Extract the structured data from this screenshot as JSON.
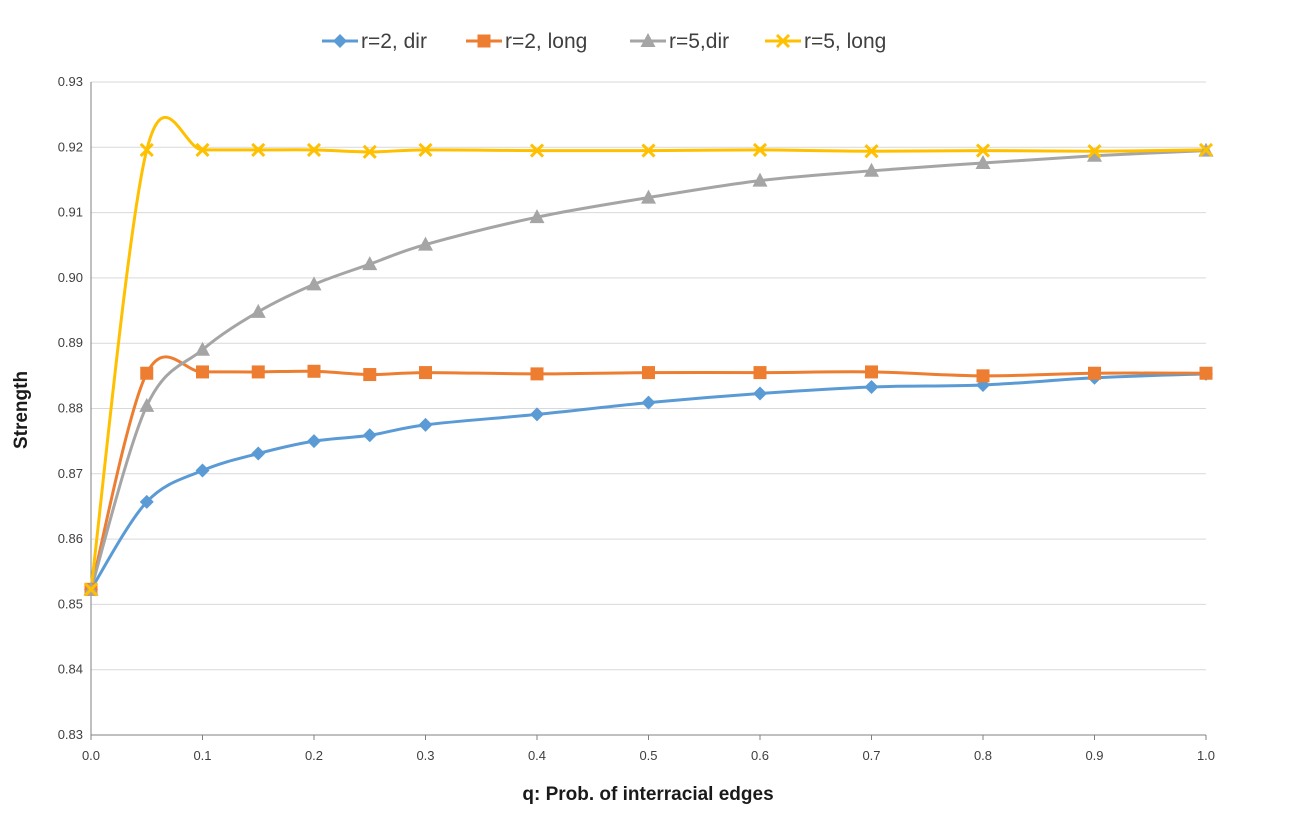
{
  "chart_data": {
    "type": "line",
    "title": "",
    "xlabel": "q: Prob. of interracial  edges",
    "ylabel": "Strength",
    "xlim": [
      0.0,
      1.0
    ],
    "ylim": [
      0.83,
      0.93
    ],
    "x_ticks": [
      "0.0",
      "0.1",
      "0.2",
      "0.3",
      "0.4",
      "0.5",
      "0.6",
      "0.7",
      "0.8",
      "0.9",
      "1.0"
    ],
    "y_ticks": [
      "0.93",
      "0.92",
      "0.91",
      "0.90",
      "0.89",
      "0.88",
      "0.87",
      "0.86",
      "0.85",
      "0.84",
      "0.83"
    ],
    "grid": "horizontal",
    "legend_position": "top",
    "x": [
      0.0,
      0.05,
      0.1,
      0.15,
      0.2,
      0.25,
      0.3,
      0.4,
      0.5,
      0.6,
      0.7,
      0.8,
      0.9,
      1.0
    ],
    "series": [
      {
        "name": "r=2, dir",
        "color": "#5B9BD5",
        "marker": "diamond",
        "values": [
          0.8523,
          0.8657,
          0.8705,
          0.8731,
          0.875,
          0.8759,
          0.8775,
          0.8791,
          0.8809,
          0.8823,
          0.8833,
          0.8836,
          0.8847,
          0.8853
        ]
      },
      {
        "name": "r=2, long",
        "color": "#ED7D31",
        "marker": "square",
        "values": [
          0.8523,
          0.8854,
          0.8856,
          0.8856,
          0.8857,
          0.8852,
          0.8855,
          0.8853,
          0.8855,
          0.8855,
          0.8856,
          0.885,
          0.8854,
          0.8854
        ]
      },
      {
        "name": "r=5,dir",
        "color": "#A5A5A5",
        "marker": "triangle",
        "values": [
          0.8523,
          0.8804,
          0.889,
          0.8948,
          0.899,
          0.9021,
          0.9051,
          0.9093,
          0.9123,
          0.9149,
          0.9164,
          0.9176,
          0.9187,
          0.9195
        ]
      },
      {
        "name": "r=5, long",
        "color": "#FFC000",
        "marker": "x",
        "values": [
          0.8523,
          0.9196,
          0.9196,
          0.9196,
          0.9196,
          0.9193,
          0.9196,
          0.9195,
          0.9195,
          0.9196,
          0.9194,
          0.9195,
          0.9194,
          0.9196
        ]
      }
    ]
  }
}
